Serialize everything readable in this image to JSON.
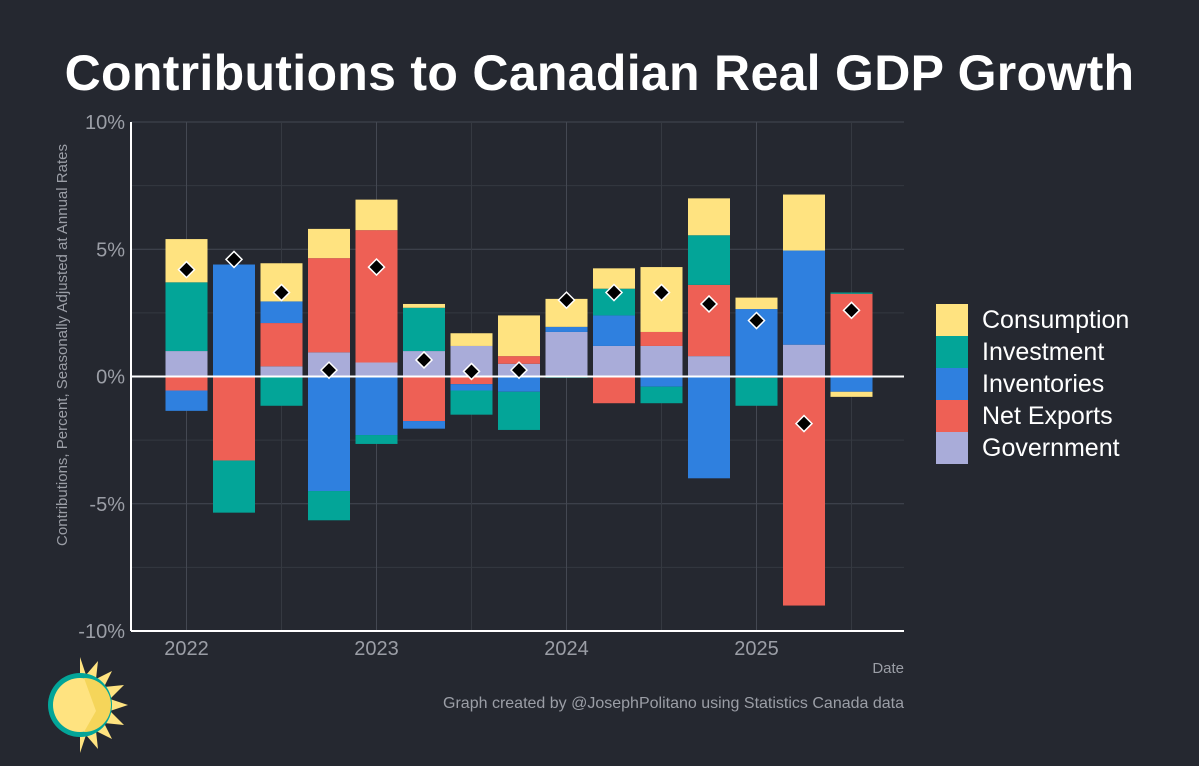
{
  "chart_data": {
    "type": "bar",
    "stacked": true,
    "title": "Contributions to Canadian Real GDP Growth",
    "xlabel": "Date",
    "ylabel": "Contributions, Percent, Seasonally Adjusted at Annual Rates",
    "ylim": [
      -10,
      10
    ],
    "yticks": [
      -10,
      -5,
      0,
      5,
      10
    ],
    "ytick_labels": [
      "-10%",
      "-5%",
      "0%",
      "5%",
      "10%"
    ],
    "x_tick_labels": [
      "2022",
      "2023",
      "2024",
      "2025"
    ],
    "x_tick_category_index": [
      0,
      4,
      8,
      12
    ],
    "grid": true,
    "legend_position": "right",
    "categories": [
      "2022 Q1",
      "2022 Q2",
      "2022 Q3",
      "2022 Q4",
      "2023 Q1",
      "2023 Q2",
      "2023 Q3",
      "2023 Q4",
      "2024 Q1",
      "2024 Q2",
      "2024 Q3",
      "2024 Q4",
      "2025 Q1",
      "2025 Q2",
      "2025 Q3"
    ],
    "series": [
      {
        "name": "Government",
        "color": "#a9acd9",
        "values": [
          1.0,
          0.0,
          0.4,
          0.95,
          0.55,
          1.0,
          1.2,
          0.5,
          1.75,
          1.2,
          1.2,
          0.8,
          0.0,
          1.25,
          0.0
        ]
      },
      {
        "name": "Net Exports",
        "color": "#ee6055",
        "values": [
          -0.55,
          -3.3,
          1.7,
          3.7,
          5.2,
          -1.75,
          -0.3,
          0.3,
          0.0,
          -1.05,
          0.55,
          2.8,
          -0.05,
          -9.0,
          3.25
        ]
      },
      {
        "name": "Inventories",
        "color": "#2f80df",
        "values": [
          -0.8,
          4.4,
          0.85,
          -4.5,
          -2.3,
          -0.3,
          -0.25,
          -0.6,
          0.2,
          1.2,
          -0.4,
          -4.0,
          2.65,
          3.7,
          -0.6
        ]
      },
      {
        "name": "Investment",
        "color": "#03a598",
        "values": [
          2.7,
          -2.05,
          -1.15,
          -1.15,
          -0.35,
          1.7,
          -0.95,
          -1.5,
          -0.05,
          1.05,
          -0.65,
          1.95,
          -1.1,
          0.0,
          0.05
        ]
      },
      {
        "name": "Consumption",
        "color": "#ffe380",
        "values": [
          1.7,
          0.0,
          1.5,
          1.15,
          1.2,
          0.15,
          0.5,
          1.6,
          1.1,
          0.8,
          2.55,
          1.45,
          0.45,
          2.2,
          -0.2
        ]
      }
    ],
    "total_gdp": [
      4.2,
      4.6,
      3.3,
      0.25,
      4.3,
      0.65,
      0.2,
      0.25,
      3.0,
      3.3,
      3.3,
      2.85,
      2.2,
      -1.85,
      2.6
    ],
    "caption": "Graph created by @JosephPolitano using Statistics Canada data"
  },
  "legend_order": [
    "Consumption",
    "Investment",
    "Inventories",
    "Net Exports",
    "Government"
  ]
}
